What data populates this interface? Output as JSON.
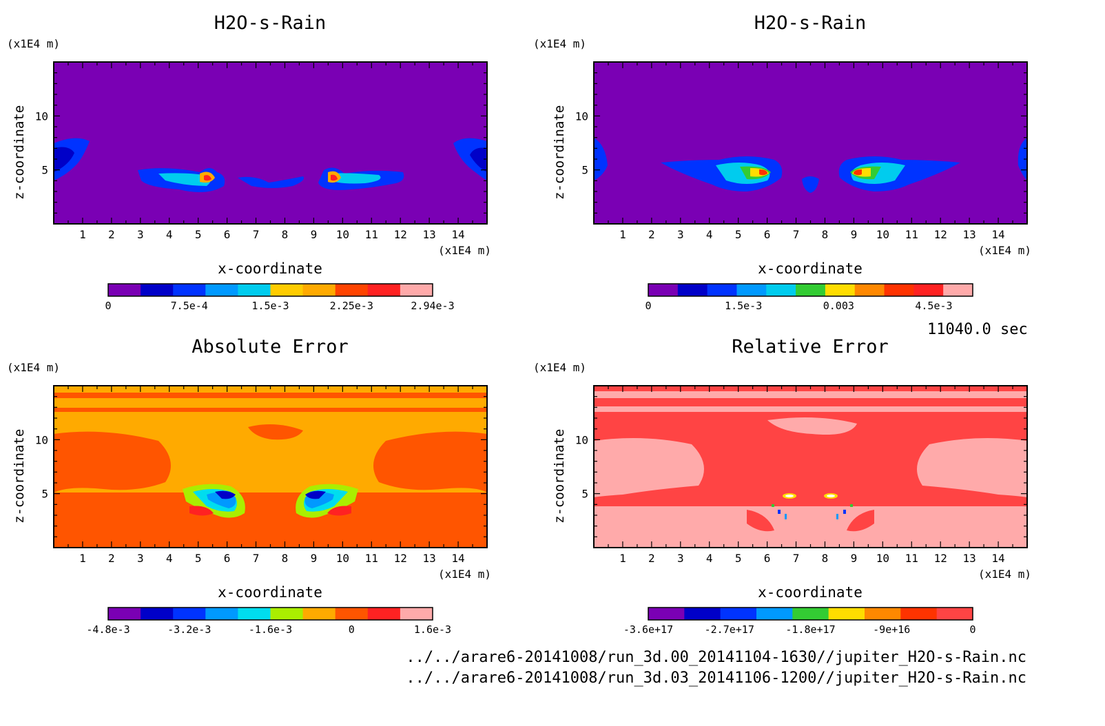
{
  "time_label": "11040.0 sec",
  "source_files": [
    "../../arare6-20141008/run_3d.00_20141104-1630//jupiter_H2O-s-Rain.nc",
    "../../arare6-20141008/run_3d.03_20141106-1200//jupiter_H2O-s-Rain.nc"
  ],
  "chart_data": [
    {
      "type": "heatmap",
      "title": "H2O-s-Rain",
      "xlabel": "x-coordinate",
      "ylabel": "z-coordinate",
      "x_unit": "(x1E4 m)",
      "y_unit": "(x1E4 m)",
      "xlim": [
        0,
        15
      ],
      "ylim": [
        0,
        15
      ],
      "x_ticks": [
        1,
        2,
        3,
        4,
        5,
        6,
        7,
        8,
        9,
        10,
        11,
        12,
        13,
        14
      ],
      "y_ticks": [
        5,
        10
      ],
      "background": "#7a00b4",
      "colorbar": {
        "colors": [
          "#7a00b4",
          "#0000c8",
          "#0033ff",
          "#0099ff",
          "#00ccee",
          "#ffcc00",
          "#ffaa00",
          "#ff4400",
          "#ff2222",
          "#ffaaaa"
        ],
        "tick_labels": [
          "0",
          "7.5e-4",
          "1.5e-3",
          "2.25e-3",
          "2.94e-3"
        ]
      }
    },
    {
      "type": "heatmap",
      "title": "H2O-s-Rain",
      "xlabel": "x-coordinate",
      "ylabel": "z-coordinate",
      "x_unit": "(x1E4 m)",
      "y_unit": "(x1E4 m)",
      "xlim": [
        0,
        15
      ],
      "ylim": [
        0,
        15
      ],
      "x_ticks": [
        1,
        2,
        3,
        4,
        5,
        6,
        7,
        8,
        9,
        10,
        11,
        12,
        13,
        14
      ],
      "y_ticks": [
        5,
        10
      ],
      "background": "#7a00b4",
      "colorbar": {
        "colors": [
          "#7a00b4",
          "#0000c8",
          "#0033ff",
          "#0099ff",
          "#00ccee",
          "#33cc33",
          "#ffdd00",
          "#ff8800",
          "#ff3300",
          "#ff2222",
          "#ffaaaa"
        ],
        "tick_labels": [
          "0",
          "1.5e-3",
          "0.003",
          "4.5e-3"
        ]
      }
    },
    {
      "type": "heatmap",
      "title": "Absolute Error",
      "xlabel": "x-coordinate",
      "ylabel": "z-coordinate",
      "x_unit": "(x1E4 m)",
      "y_unit": "(x1E4 m)",
      "xlim": [
        0,
        15
      ],
      "ylim": [
        0,
        15
      ],
      "x_ticks": [
        1,
        2,
        3,
        4,
        5,
        6,
        7,
        8,
        9,
        10,
        11,
        12,
        13,
        14
      ],
      "y_ticks": [
        5,
        10
      ],
      "background": "#ffaa00",
      "colorbar": {
        "colors": [
          "#7a00b4",
          "#0000c8",
          "#0033ff",
          "#0099ff",
          "#00ddee",
          "#aaee00",
          "#ffaa00",
          "#ff5500",
          "#ff2222",
          "#ffaaaa"
        ],
        "tick_labels": [
          "-4.8e-3",
          "-3.2e-3",
          "-1.6e-3",
          "0",
          "1.6e-3"
        ]
      }
    },
    {
      "type": "heatmap",
      "title": "Relative Error",
      "xlabel": "x-coordinate",
      "ylabel": "z-coordinate",
      "x_unit": "(x1E4 m)",
      "y_unit": "(x1E4 m)",
      "xlim": [
        0,
        15
      ],
      "ylim": [
        0,
        15
      ],
      "x_ticks": [
        1,
        2,
        3,
        4,
        5,
        6,
        7,
        8,
        9,
        10,
        11,
        12,
        13,
        14
      ],
      "y_ticks": [
        5,
        10
      ],
      "background": "#ff4444",
      "colorbar": {
        "colors": [
          "#7a00b4",
          "#0000c8",
          "#0033ff",
          "#0099ff",
          "#33cc33",
          "#ffdd00",
          "#ff8800",
          "#ff3300",
          "#ff4444"
        ],
        "tick_labels": [
          "-3.6e+17",
          "-2.7e+17",
          "-1.8e+17",
          "-9e+16",
          "0"
        ]
      }
    }
  ]
}
